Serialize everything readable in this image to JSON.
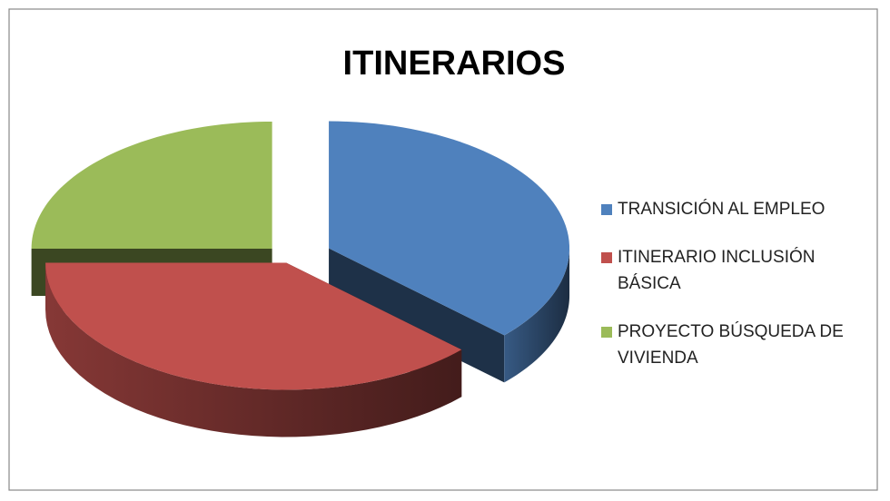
{
  "chart_data": {
    "type": "pie3d",
    "title": "ITINERARIOS",
    "categories": [
      "TRANSICIÓN AL EMPLEO",
      "ITINERARIO INCLUSIÓN BÁSICA",
      "PROYECTO BÚSQUEDA DE VIVIENDA"
    ],
    "values": [
      37,
      38,
      25
    ],
    "colors": [
      "#4f81bd",
      "#c0504d",
      "#9bbb59"
    ],
    "legend": "right"
  }
}
